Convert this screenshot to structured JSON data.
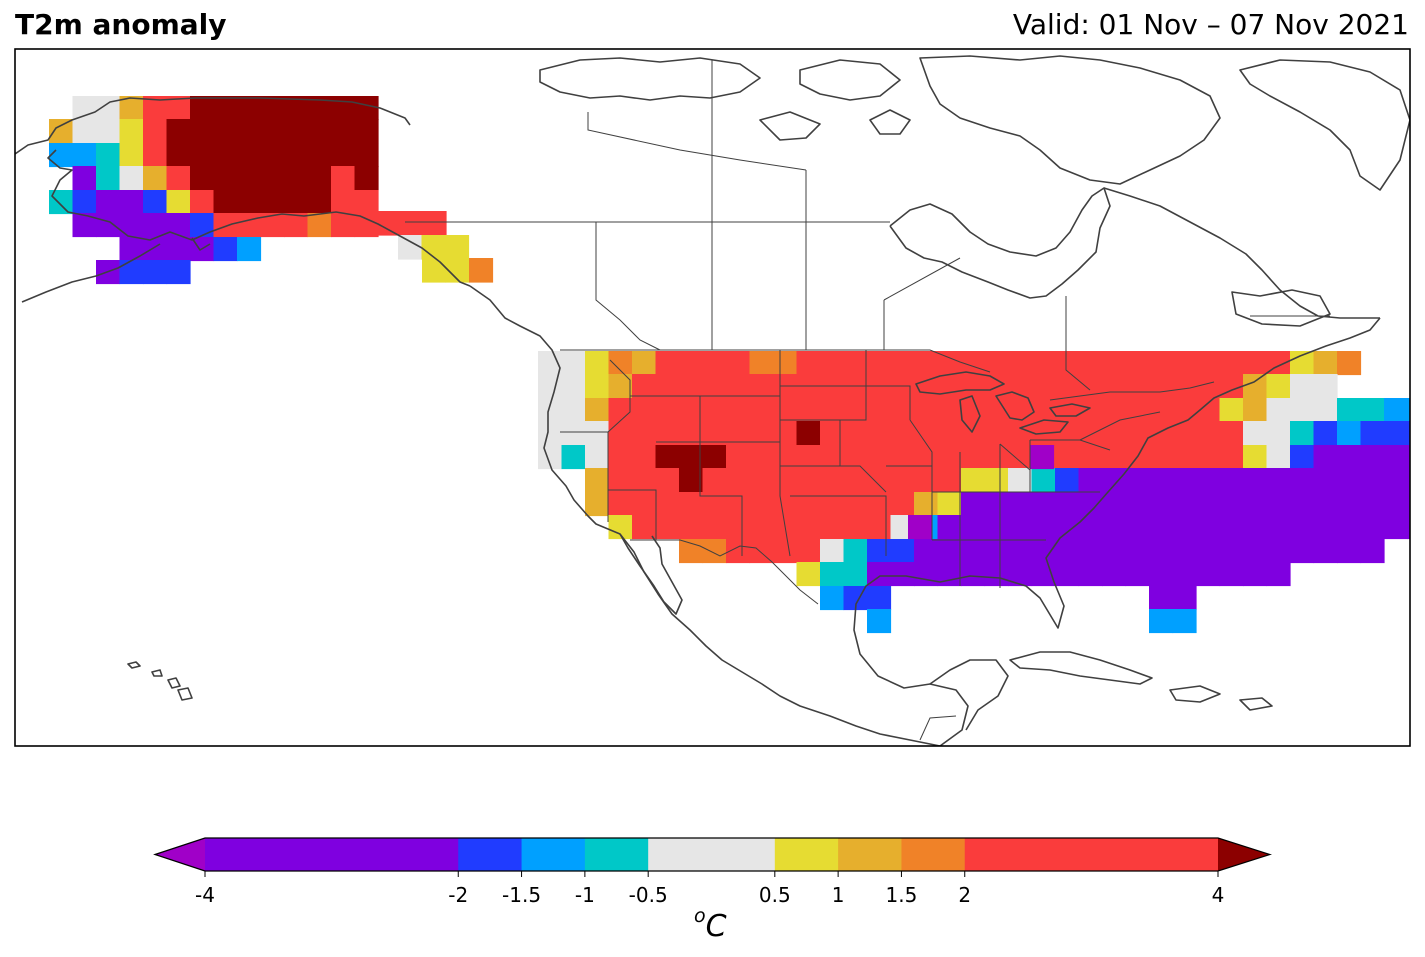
{
  "header": {
    "title": "T2m anomaly",
    "valid": "Valid: 01 Nov – 07 Nov 2021"
  },
  "colorbar": {
    "unit_base": "C",
    "unit_super": "o",
    "extend": "both",
    "ticks": [
      "-4",
      "-2",
      "-1.5",
      "-1",
      "-0.5",
      "0.5",
      "1",
      "1.5",
      "2",
      "4"
    ],
    "levels": [
      -4,
      -2,
      -1.5,
      -1,
      -0.5,
      0.5,
      1,
      1.5,
      2,
      4
    ],
    "colors": [
      "#7f00e0",
      "#203cff",
      "#00a0ff",
      "#00c8c8",
      "#e6e6e6",
      "#e6dc32",
      "#e6af2d",
      "#f08228",
      "#fa3c3c"
    ],
    "under_color": "#a000c8",
    "over_color": "#8c0000"
  },
  "map": {
    "region": "North America",
    "grid_resolution_deg": 2.5,
    "coastline_color": "#404040",
    "anomaly_patches": [
      {
        "area": "Alaska interior",
        "category": "> 4"
      },
      {
        "area": "Alaska west coast",
        "category": "-4 to -2"
      },
      {
        "area": "Gulf of Alaska coast",
        "category": "2 to 4"
      },
      {
        "area": "US West and Rockies",
        "category": "2 to 4"
      },
      {
        "area": "Utah / Arizona",
        "category": "> 4"
      },
      {
        "area": "Wyoming",
        "category": "> 4"
      },
      {
        "area": "Northern Plains",
        "category": "2 to 4"
      },
      {
        "area": "US Southeast and Ohio Valley",
        "category": "-4 to -2"
      },
      {
        "area": "Central Appalachians",
        "category": "< -4"
      },
      {
        "area": "Texas coast",
        "category": "-2 to -1.5"
      },
      {
        "area": "Florida peninsula",
        "category": "-1.5 to -1"
      },
      {
        "area": "Northeast US",
        "category": "-2 to -1.5"
      },
      {
        "area": "Pacific Northwest coast",
        "category": "-0.5 to 0.5"
      }
    ]
  }
}
